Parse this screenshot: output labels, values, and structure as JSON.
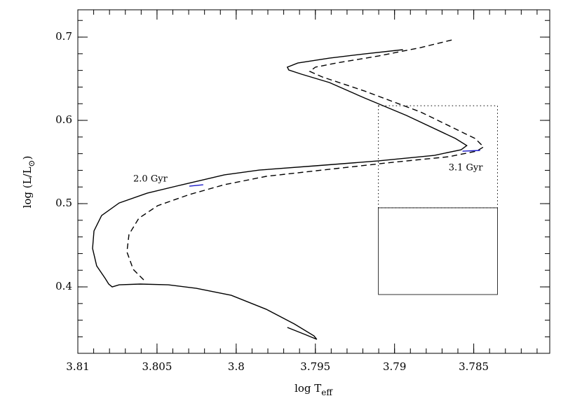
{
  "chart_data": {
    "type": "line",
    "xlabel": {
      "main": "log T",
      "sub": "eff"
    },
    "ylabel": {
      "main": "log (L/L",
      "sub": "⊙",
      "end": ")"
    },
    "xlim": [
      3.81,
      3.7802
    ],
    "ylim": [
      0.3202,
      0.7328
    ],
    "xticks": [
      3.81,
      3.805,
      3.8,
      3.795,
      3.79,
      3.785
    ],
    "yticks": [
      0.4,
      0.5,
      0.6,
      0.7
    ],
    "minor_xstep": 0.001,
    "minor_ystep": 0.02,
    "series": [
      {
        "color": "#000000",
        "dash": "solid",
        "x": [
          3.79677,
          3.79566,
          3.79491,
          3.79509,
          3.79633,
          3.7981,
          3.80031,
          3.80252,
          3.80429,
          3.80606,
          3.80739,
          3.80783,
          3.80805,
          3.80827,
          3.80881,
          3.80907,
          3.80898,
          3.8085,
          3.80739,
          3.80562,
          3.80341,
          3.80075,
          3.79854,
          3.795,
          3.79102,
          3.78748,
          3.7858,
          3.78544,
          3.78615,
          3.78925,
          3.7919,
          3.79411,
          3.79588,
          3.79668,
          3.79677,
          3.79611,
          3.79411,
          3.7919,
          3.78947
        ],
        "values": [
          0.3513,
          0.3429,
          0.337,
          0.3412,
          0.3555,
          0.3731,
          0.3899,
          0.3983,
          0.4025,
          0.4034,
          0.4025,
          0.4,
          0.4034,
          0.4101,
          0.4252,
          0.4462,
          0.4672,
          0.4857,
          0.5008,
          0.5126,
          0.5227,
          0.5345,
          0.5403,
          0.5454,
          0.5513,
          0.558,
          0.5647,
          0.5697,
          0.5782,
          0.6059,
          0.6269,
          0.6454,
          0.6555,
          0.6605,
          0.6639,
          0.6689,
          0.6748,
          0.6798,
          0.6849
        ]
      },
      {
        "color": "#000000",
        "dash": "dashed",
        "x": [
          3.80584,
          3.8065,
          3.8069,
          3.80677,
          3.80615,
          3.80496,
          3.80296,
          3.80075,
          3.7981,
          3.79456,
          3.79013,
          3.78659,
          3.78482,
          3.78438,
          3.78491,
          3.78836,
          3.7919,
          3.79456,
          3.79535,
          3.795,
          3.79367,
          3.79102,
          3.78836,
          3.78637
        ],
        "values": [
          0.4084,
          0.421,
          0.442,
          0.463,
          0.4824,
          0.4975,
          0.5109,
          0.5227,
          0.5328,
          0.5403,
          0.5496,
          0.5563,
          0.563,
          0.5681,
          0.5782,
          0.6101,
          0.6353,
          0.6521,
          0.6588,
          0.6639,
          0.6689,
          0.6773,
          0.6874,
          0.6966
        ]
      },
      {
        "color": "#1a1ac8",
        "dash": "solid",
        "x": [
          3.80296,
          3.80208
        ],
        "values": [
          0.521,
          0.5227
        ]
      },
      {
        "color": "#1a1ac8",
        "dash": "solid",
        "x": [
          3.78571,
          3.7846
        ],
        "values": [
          0.563,
          0.5639
        ]
      }
    ],
    "boxes": [
      {
        "x": [
          3.79102,
          3.7835
        ],
        "y": [
          0.495,
          0.6176
        ],
        "dash": "dotted"
      },
      {
        "x": [
          3.79102,
          3.7835
        ],
        "y": [
          0.3908,
          0.495
        ],
        "dash": "solid"
      }
    ],
    "annotations": [
      {
        "text": "2.0 Gyr",
        "x": 3.8065,
        "y": 0.5294
      },
      {
        "text": "3.1 Gyr",
        "x": 3.78659,
        "y": 0.5429
      }
    ]
  }
}
